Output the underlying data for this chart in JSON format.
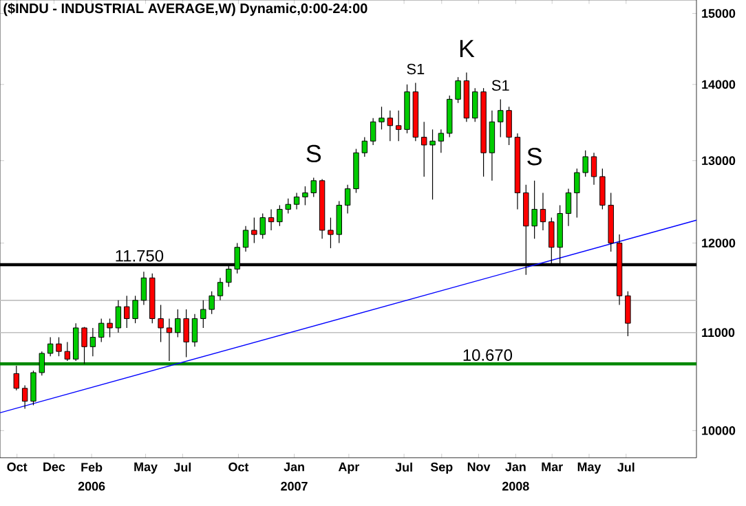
{
  "chart_data": {
    "type": "candlestick",
    "title": "($INDU - INDUSTRIAL AVERAGE,W) Dynamic,0:00-24:00",
    "x": [
      "2005-09-30",
      "2005-10-14",
      "2005-10-28",
      "2005-11-11",
      "2005-11-25",
      "2005-12-09",
      "2005-12-23",
      "2006-01-06",
      "2006-01-20",
      "2006-02-03",
      "2006-02-17",
      "2006-03-03",
      "2006-03-17",
      "2006-03-31",
      "2006-04-14",
      "2006-04-28",
      "2006-05-12",
      "2006-05-26",
      "2006-06-09",
      "2006-06-23",
      "2006-07-07",
      "2006-07-21",
      "2006-08-04",
      "2006-08-18",
      "2006-09-01",
      "2006-09-15",
      "2006-09-29",
      "2006-10-13",
      "2006-10-27",
      "2006-11-10",
      "2006-11-24",
      "2006-12-08",
      "2006-12-22",
      "2007-01-05",
      "2007-01-19",
      "2007-02-02",
      "2007-02-16",
      "2007-03-02",
      "2007-03-16",
      "2007-03-30",
      "2007-04-13",
      "2007-04-27",
      "2007-05-11",
      "2007-05-25",
      "2007-06-08",
      "2007-06-22",
      "2007-07-06",
      "2007-07-20",
      "2007-08-03",
      "2007-08-17",
      "2007-08-31",
      "2007-09-14",
      "2007-09-28",
      "2007-10-12",
      "2007-10-26",
      "2007-11-09",
      "2007-11-23",
      "2007-12-07",
      "2007-12-21",
      "2008-01-04",
      "2008-01-18",
      "2008-02-01",
      "2008-02-15",
      "2008-02-29",
      "2008-03-14",
      "2008-03-28",
      "2008-04-11",
      "2008-04-25",
      "2008-05-09",
      "2008-05-23",
      "2008-06-06",
      "2008-06-20",
      "2008-07-04"
    ],
    "ohlc": [
      [
        10570,
        10650,
        10400,
        10420
      ],
      [
        10420,
        10450,
        10216,
        10290
      ],
      [
        10290,
        10600,
        10250,
        10580
      ],
      [
        10580,
        10800,
        10550,
        10780
      ],
      [
        10780,
        10950,
        10750,
        10880
      ],
      [
        10880,
        10950,
        10750,
        10800
      ],
      [
        10800,
        10900,
        10700,
        10720
      ],
      [
        10720,
        11100,
        10700,
        11050
      ],
      [
        11050,
        11060,
        10670,
        10850
      ],
      [
        10850,
        11050,
        10750,
        10950
      ],
      [
        10950,
        11150,
        10900,
        11100
      ],
      [
        11100,
        11150,
        10950,
        11050
      ],
      [
        11050,
        11350,
        11000,
        11280
      ],
      [
        11280,
        11400,
        11050,
        11150
      ],
      [
        11150,
        11400,
        11100,
        11350
      ],
      [
        11350,
        11670,
        11300,
        11600
      ],
      [
        11600,
        11650,
        11100,
        11150
      ],
      [
        11150,
        11300,
        10900,
        11050
      ],
      [
        11050,
        11150,
        10700,
        11000
      ],
      [
        11000,
        11250,
        10950,
        11150
      ],
      [
        11150,
        11250,
        10740,
        10900
      ],
      [
        10900,
        11200,
        10850,
        11150
      ],
      [
        11150,
        11350,
        11050,
        11250
      ],
      [
        11250,
        11450,
        11200,
        11400
      ],
      [
        11400,
        11600,
        11350,
        11550
      ],
      [
        11550,
        11750,
        11500,
        11700
      ],
      [
        11700,
        12000,
        11650,
        11950
      ],
      [
        11950,
        12200,
        11900,
        12150
      ],
      [
        12150,
        12300,
        12000,
        12100
      ],
      [
        12100,
        12350,
        12050,
        12300
      ],
      [
        12300,
        12400,
        12150,
        12250
      ],
      [
        12250,
        12450,
        12200,
        12400
      ],
      [
        12400,
        12530,
        12350,
        12460
      ],
      [
        12460,
        12600,
        12400,
        12550
      ],
      [
        12550,
        12680,
        12450,
        12600
      ],
      [
        12600,
        12786,
        12550,
        12750
      ],
      [
        12750,
        12770,
        12050,
        12150
      ],
      [
        12150,
        12300,
        11940,
        12100
      ],
      [
        12100,
        12500,
        12000,
        12450
      ],
      [
        12450,
        12700,
        12350,
        12650
      ],
      [
        12650,
        13150,
        12600,
        13100
      ],
      [
        13100,
        13300,
        13050,
        13250
      ],
      [
        13250,
        13550,
        13200,
        13500
      ],
      [
        13500,
        13700,
        13400,
        13550
      ],
      [
        13550,
        13650,
        13250,
        13450
      ],
      [
        13450,
        13650,
        13250,
        13400
      ],
      [
        13400,
        14000,
        13350,
        13900
      ],
      [
        13900,
        14021,
        13250,
        13300
      ],
      [
        13300,
        13500,
        12800,
        13200
      ],
      [
        13200,
        13400,
        12518,
        13250
      ],
      [
        13250,
        13400,
        13100,
        13350
      ],
      [
        13350,
        13850,
        13300,
        13800
      ],
      [
        13800,
        14100,
        13750,
        14050
      ],
      [
        14050,
        14164,
        13500,
        13550
      ],
      [
        13550,
        13950,
        13500,
        13900
      ],
      [
        13900,
        13950,
        12800,
        13100
      ],
      [
        13100,
        13650,
        12750,
        13500
      ],
      [
        13500,
        13800,
        13300,
        13650
      ],
      [
        13650,
        13700,
        13200,
        13300
      ],
      [
        13300,
        13350,
        12400,
        12600
      ],
      [
        12600,
        12700,
        11635,
        12200
      ],
      [
        12200,
        12750,
        12050,
        12400
      ],
      [
        12400,
        12600,
        12150,
        12250
      ],
      [
        12250,
        12300,
        11740,
        11950
      ],
      [
        11950,
        12450,
        11750,
        12350
      ],
      [
        12350,
        12650,
        12200,
        12600
      ],
      [
        12600,
        12900,
        12300,
        12850
      ],
      [
        12850,
        13130,
        12800,
        13050
      ],
      [
        13050,
        13100,
        12700,
        12800
      ],
      [
        12800,
        12900,
        12400,
        12450
      ],
      [
        12450,
        12600,
        11900,
        12000
      ],
      [
        12000,
        12100,
        11300,
        11400
      ],
      [
        11400,
        11450,
        10962,
        11100
      ]
    ],
    "colors": [
      "#ff0000",
      "#ff0000",
      "#00cc00",
      "#00cc00",
      "#00cc00",
      "#ff0000",
      "#ff0000",
      "#00cc00",
      "#ff0000",
      "#00cc00",
      "#00cc00",
      "#ff0000",
      "#00cc00",
      "#ff0000",
      "#00cc00",
      "#00cc00",
      "#ff0000",
      "#ff0000",
      "#ff0000",
      "#00cc00",
      "#ff0000",
      "#00cc00",
      "#00cc00",
      "#00cc00",
      "#00cc00",
      "#00cc00",
      "#00cc00",
      "#00cc00",
      "#ff0000",
      "#00cc00",
      "#ff0000",
      "#00cc00",
      "#00cc00",
      "#00cc00",
      "#00cc00",
      "#00cc00",
      "#ff0000",
      "#ff0000",
      "#00cc00",
      "#00cc00",
      "#00cc00",
      "#00cc00",
      "#00cc00",
      "#00cc00",
      "#ff0000",
      "#ff0000",
      "#00cc00",
      "#ff0000",
      "#ff0000",
      "#00cc00",
      "#00cc00",
      "#00cc00",
      "#00cc00",
      "#ff0000",
      "#00cc00",
      "#ff0000",
      "#00cc00",
      "#00cc00",
      "#ff0000",
      "#ff0000",
      "#ff0000",
      "#00cc00",
      "#ff0000",
      "#ff0000",
      "#00cc00",
      "#00cc00",
      "#00cc00",
      "#00cc00",
      "#ff0000",
      "#ff0000",
      "#ff0000",
      "#ff0000",
      "#ff0000"
    ],
    "series": [
      {
        "type": "line",
        "color": "#0000ff",
        "x": [
          "2005-09-03",
          "2008-10-25"
        ],
        "values": [
          10175,
          12270
        ]
      }
    ],
    "log": "y",
    "xlim": [
      "2005-09-03",
      "2008-10-25"
    ],
    "xticks": [
      {
        "value": "2005-10-01",
        "label": "Oct"
      },
      {
        "value": "2005-12-01",
        "label": "Dec"
      },
      {
        "value": "2006-02-01",
        "label": "Feb"
      },
      {
        "value": "2006-05-01",
        "label": "May"
      },
      {
        "value": "2006-07-01",
        "label": "Jul"
      },
      {
        "value": "2006-10-01",
        "label": "Oct"
      },
      {
        "value": "2007-01-01",
        "label": "Jan"
      },
      {
        "value": "2007-04-01",
        "label": "Apr"
      },
      {
        "value": "2007-07-01",
        "label": "Jul"
      },
      {
        "value": "2007-09-01",
        "label": "Sep"
      },
      {
        "value": "2007-11-01",
        "label": "Nov"
      },
      {
        "value": "2008-01-01",
        "label": "Jan"
      },
      {
        "value": "2008-03-01",
        "label": "Mar"
      },
      {
        "value": "2008-05-01",
        "label": "May"
      },
      {
        "value": "2008-07-01",
        "label": "Jul"
      }
    ],
    "ylim": [
      9740,
      15200
    ],
    "yticks": [
      10000,
      11000,
      12000,
      13000,
      14000,
      15000
    ],
    "ref_lines": [
      {
        "axis": "y",
        "value": 11750,
        "label": "11.750",
        "color": "#000000"
      },
      {
        "axis": "y",
        "value": 10670,
        "label": "10.670",
        "color": "#008800"
      },
      {
        "axis": "y",
        "value": 11000,
        "label": null,
        "color": "#c0c0c0"
      },
      {
        "axis": "y",
        "value": 11350,
        "label": null,
        "color": "#c0c0c0"
      }
    ],
    "annotations": [
      {
        "text": "S",
        "x": "2007-02-02",
        "y": 12786
      },
      {
        "text": "S1",
        "x": "2007-07-20",
        "y": 14021
      },
      {
        "text": "K",
        "x": "2007-10-12",
        "y": 14164
      },
      {
        "text": "S1",
        "x": "2007-12-07",
        "y": 13800
      },
      {
        "text": "S",
        "x": "2008-02-01",
        "y": 12750
      },
      "2006",
      "2007",
      "2008"
    ]
  }
}
